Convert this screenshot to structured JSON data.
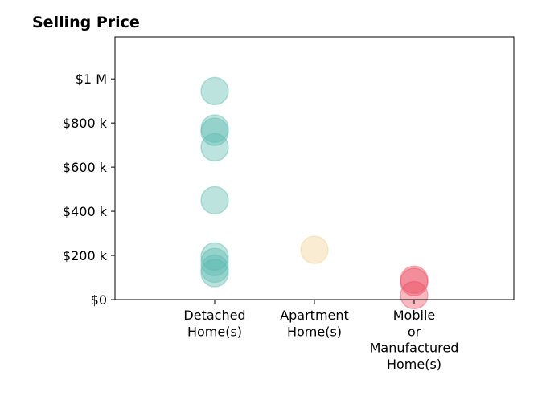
{
  "chart_data": {
    "type": "scatter",
    "title": "Selling Price",
    "xlabel": "",
    "ylabel": "",
    "categories": [
      [
        "Detached",
        "Home(s)"
      ],
      [
        "Apartment",
        "Home(s)"
      ],
      [
        "Mobile",
        "or",
        "Manufactured",
        "Home(s)"
      ]
    ],
    "y_ticks": [
      {
        "value": 0,
        "label": "$0"
      },
      {
        "value": 200000,
        "label": "$200 k"
      },
      {
        "value": 400000,
        "label": "$400 k"
      },
      {
        "value": 600000,
        "label": "$600 k"
      },
      {
        "value": 800000,
        "label": "$800 k"
      },
      {
        "value": 1000000,
        "label": "$1 M"
      }
    ],
    "ylim": [
      0,
      1190000
    ],
    "x_range": [
      0,
      4
    ],
    "grid": false,
    "legend": "none",
    "marker_alpha": 0.4,
    "series": [
      {
        "category_index": 0,
        "color": "#5ab9ae",
        "values": [
          945000,
          775000,
          760000,
          690000,
          450000,
          195000,
          170000,
          140000,
          120000
        ]
      },
      {
        "category_index": 1,
        "color": "#f1d08e",
        "values": [
          225000
        ]
      },
      {
        "category_index": 2,
        "color": "#ea4d61",
        "values": [
          90000,
          80000,
          20000
        ]
      }
    ]
  }
}
